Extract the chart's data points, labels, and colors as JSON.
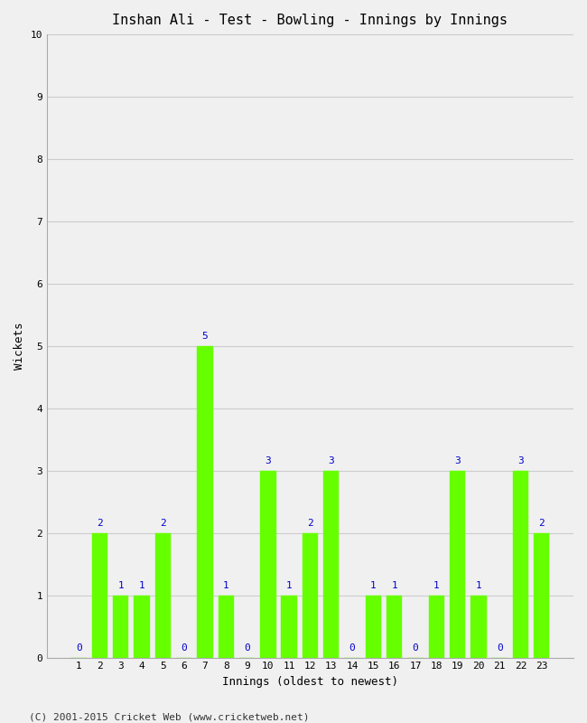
{
  "title": "Inshan Ali - Test - Bowling - Innings by Innings",
  "xlabel": "Innings (oldest to newest)",
  "ylabel": "Wickets",
  "bar_color": "#66ff00",
  "bar_edge_color": "#66ff00",
  "background_color": "#f0f0f0",
  "plot_bg_color": "#f0f0f0",
  "annotation_color": "#0000cc",
  "grid_color": "#cccccc",
  "categories": [
    1,
    2,
    3,
    4,
    5,
    6,
    7,
    8,
    9,
    10,
    11,
    12,
    13,
    14,
    15,
    16,
    17,
    18,
    19,
    20,
    21,
    22,
    23
  ],
  "values": [
    0,
    2,
    1,
    1,
    2,
    0,
    5,
    1,
    0,
    3,
    1,
    2,
    3,
    0,
    1,
    1,
    0,
    1,
    3,
    1,
    0,
    3,
    2
  ],
  "ylim": [
    0,
    10
  ],
  "yticks": [
    0,
    1,
    2,
    3,
    4,
    5,
    6,
    7,
    8,
    9,
    10
  ],
  "footer": "(C) 2001-2015 Cricket Web (www.cricketweb.net)",
  "title_fontsize": 11,
  "label_fontsize": 9,
  "tick_fontsize": 8,
  "annotation_fontsize": 8,
  "footer_fontsize": 8
}
